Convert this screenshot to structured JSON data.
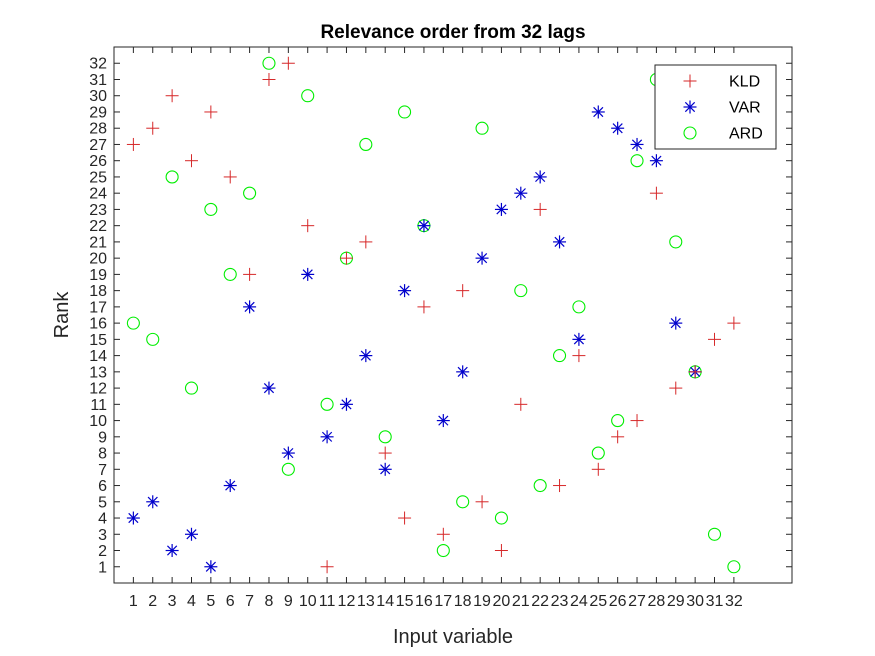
{
  "chart_data": {
    "type": "scatter",
    "title": "Relevance order from 32 lags",
    "xlabel": "Input variable",
    "ylabel": "Rank",
    "xlim": [
      0,
      35
    ],
    "ylim": [
      0,
      33
    ],
    "xticks": [
      1,
      2,
      3,
      4,
      5,
      6,
      7,
      8,
      9,
      10,
      11,
      12,
      13,
      14,
      15,
      16,
      17,
      18,
      19,
      20,
      21,
      22,
      23,
      24,
      25,
      26,
      27,
      28,
      29,
      30,
      31,
      32
    ],
    "yticks": [
      1,
      2,
      3,
      4,
      5,
      6,
      7,
      8,
      9,
      10,
      11,
      12,
      13,
      14,
      15,
      16,
      17,
      18,
      19,
      20,
      21,
      22,
      23,
      24,
      25,
      26,
      27,
      28,
      29,
      30,
      31,
      32
    ],
    "grid": false,
    "legend_position": "top-right",
    "series": [
      {
        "name": "KLD",
        "marker": "plus",
        "color": "#d62728",
        "x": [
          1,
          2,
          3,
          4,
          5,
          6,
          7,
          8,
          9,
          10,
          11,
          12,
          13,
          14,
          15,
          16,
          17,
          18,
          19,
          20,
          21,
          22,
          23,
          24,
          25,
          26,
          27,
          28,
          29,
          30,
          31,
          32
        ],
        "y": [
          27,
          28,
          30,
          26,
          29,
          25,
          19,
          31,
          32,
          22,
          1,
          20,
          21,
          8,
          4,
          17,
          3,
          18,
          5,
          2,
          11,
          23,
          6,
          14,
          7,
          9,
          10,
          24,
          12,
          13,
          15,
          16
        ]
      },
      {
        "name": "VAR",
        "marker": "asterisk",
        "color": "#0000cc",
        "x": [
          1,
          2,
          3,
          4,
          5,
          6,
          7,
          8,
          9,
          10,
          11,
          12,
          13,
          14,
          15,
          16,
          17,
          18,
          19,
          20,
          21,
          22,
          23,
          24,
          25,
          26,
          27,
          28,
          29,
          30
        ],
        "y": [
          4,
          5,
          2,
          3,
          1,
          6,
          17,
          12,
          8,
          19,
          9,
          11,
          14,
          7,
          18,
          22,
          10,
          13,
          20,
          23,
          24,
          25,
          21,
          15,
          29,
          28,
          27,
          26,
          16,
          13
        ]
      },
      {
        "name": "ARD",
        "marker": "circle",
        "color": "#00ee00",
        "x": [
          1,
          2,
          3,
          4,
          5,
          6,
          7,
          8,
          9,
          10,
          11,
          12,
          13,
          14,
          15,
          16,
          17,
          18,
          19,
          20,
          21,
          22,
          23,
          24,
          25,
          26,
          27,
          28,
          29,
          30,
          31,
          32
        ],
        "y": [
          16,
          15,
          25,
          12,
          23,
          19,
          24,
          32,
          7,
          30,
          11,
          20,
          27,
          9,
          29,
          22,
          2,
          5,
          28,
          4,
          18,
          6,
          14,
          17,
          8,
          10,
          26,
          31,
          21,
          13,
          3,
          1
        ]
      }
    ]
  }
}
